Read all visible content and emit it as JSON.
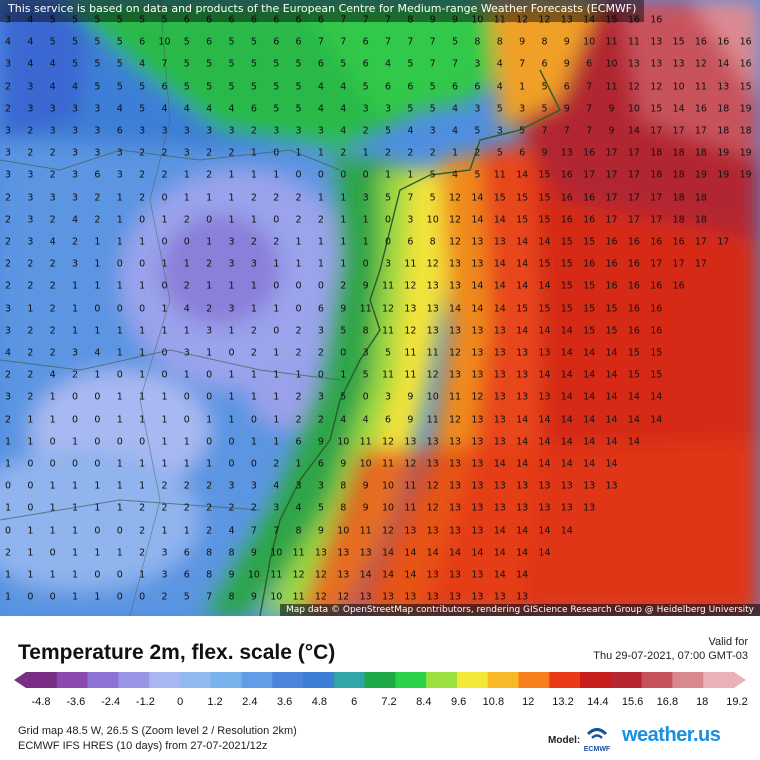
{
  "notice": "This service is based on data and products of the European Centre for Medium-range Weather Forecasts (ECMWF)",
  "attribution": "Map data © OpenStreetMap contributors, rendering GIScience Research Group @ Heidelberg University",
  "title": "Temperature 2m, flex. scale (°C)",
  "valid_label": "Valid for",
  "valid_time": "Thu 29-07-2021, 07:00 GMT-03",
  "scale_ticks": [
    "-4.8",
    "-3.6",
    "-2.4",
    "-1.2",
    "0",
    "1.2",
    "2.4",
    "3.6",
    "4.8",
    "6",
    "7.2",
    "8.4",
    "9.6",
    "10.8",
    "12",
    "13.2",
    "14.4",
    "15.6",
    "16.8",
    "18",
    "19.2"
  ],
  "scale_colors": [
    "#7b2e86",
    "#8a48b0",
    "#8d72d4",
    "#9a95e6",
    "#a8b6f2",
    "#8fb9ef",
    "#78b2ec",
    "#5f9ee6",
    "#4a86dc",
    "#3b7fd8",
    "#2fa7a9",
    "#1fa948",
    "#2bd147",
    "#9be043",
    "#f2e838",
    "#f8b929",
    "#f47f1b",
    "#ea3a18",
    "#c71d1d",
    "#b8262f",
    "#c7525d",
    "#d98890",
    "#e9b2b8"
  ],
  "grid_info": "Grid map 48.5 W, 26.5 S (Zoom level 2 / Resolution 2km)",
  "model_info": "ECMWF IFS HRES (10 days) from 27-07-2021/12z",
  "model_label": "Model:",
  "ecmwf_logo_text": "ECMWF",
  "brand": "weather.us",
  "grid_values": [
    "3 4 5 5 5 5 5 5 6 6 6 6 6 6 6 7 7 7 8 9 9 10 11 12 12 13 14 15 16 16",
    "4 4 5 5 5 5 6 10 5 6 5 5 6 6 7 7 6 7 7 7 5 8 8 9 8 9 10 11 11 13 15 16 16 16",
    "3 4 4 5 5 5 4 7 5 5 5 5 5 5 6 5 6 4 5 7 7 3 4 7 6 9 6 10 13 13 13 12 14 16",
    "2 3 4 4 5 5 5 6 5 5 5 5 5 5 4 4 5 6 6 5 6 6 4 1 5 6 7 11 12 12 10 11 13 15",
    "2 3 3 3 3 4 5 4 4 4 4 6 5 5 4 4 3 3 5 5 4 3 5 3 5 9 7 9 10 15 14 16 18 19",
    "3 2 3 3 3 6 3 3 3 3 3 2 3 3 3 4 2 5 4 3 4 5 3 5 7 7 7 9 14 17 17 17 18 18",
    "3 2 2 3 3 3 2 2 3 2 2 1 0 1 1 2 1 2 2 2 1 2 5 6 9 13 16 17 17 18 18 18 19 19",
    "3 3 2 3 6 3 2 2 1 2 1 1 1 0 0 0 0 1 1 5 4 5 11 14 15 16 17 17 17 18 18 19 19 19",
    "2 3 3 3 2 1 2 0 1 1 1 2 2 2 1 1 3 5 7 5 12 14 15 15 15 16 16 17 17 17 18 18",
    "2 3 2 4 2 1 0 1 2 0 1 1 0 2 2 1 1 0 3 10 12 14 14 15 15 16 16 17 17 17 18 18",
    "2 3 4 2 1 1 1 0 0 1 3 2 2 1 1 1 1 0 6 8 12 13 13 14 14 15 15 16 16 16 16 17 17",
    "2 2 2 3 1 0 0 1 1 2 3 3 1 1 1 1 0 3 11 12 13 13 14 14 15 15 16 16 16 17 17 17",
    "2 2 2 1 1 1 1 0 2 1 1 1 0 0 0 2 9 11 12 13 13 14 14 14 14 15 15 16 16 16 16",
    "3 1 2 1 0 0 0 1 4 2 3 1 1 0 6 9 11 12 13 13 14 14 14 15 15 15 15 15 16 16",
    "3 2 2 1 1 1 1 1 1 3 1 2 0 2 3 5 8 11 12 13 13 13 13 14 14 14 15 15 16 16",
    "4 2 2 3 4 1 1 0 3 1 0 2 1 2 2 0 3 5 11 11 12 13 13 13 13 14 14 14 15 15",
    "2 2 4 2 1 0 1 0 1 0 1 1 1 1 0 1 5 11 11 12 13 13 13 13 14 14 14 14 15 15",
    "3 2 1 0 0 1 1 1 0 0 1 1 1 2 3 5 0 3 9 10 11 12 13 13 13 14 14 14 14 14",
    "2 1 1 0 0 1 1 1 0 1 1 0 1 2 2 4 4 6 9 11 12 13 13 14 14 14 14 14 14 14",
    "1 1 0 1 0 0 0 1 1 0 0 1 1 6 9 10 11 12 13 13 13 13 13 14 14 14 14 14 14",
    "1 0 0 0 0 1 1 1 1 1 0 0 2 1 6 9 10 11 12 13 13 13 14 14 14 14 14 14",
    "0 0 1 1 1 1 1 2 2 2 3 3 4 3 3 8 9 10 11 12 13 13 13 13 13 13 13 13",
    "1 0 1 1 1 1 2 2 2 2 2 2 3 4 5 8 9 10 11 12 13 13 13 13 13 13 13",
    "0 1 1 1 0 0 2 1 1 2 4 7 7 8 9 10 11 12 13 13 13 13 14 14 14 14",
    "2 1 0 1 1 1 2 3 6 8 8 9 10 11 13 13 13 14 14 14 14 14 14 14 14",
    "1 1 1 1 0 0 1 3 6 8 9 10 11 12 12 13 14 14 14 13 13 13 14 14",
    "1 0 0 1 1 0 0 2 5 7 8 9 10 11 12 12 13 13 13 13 13 13 13 13"
  ]
}
